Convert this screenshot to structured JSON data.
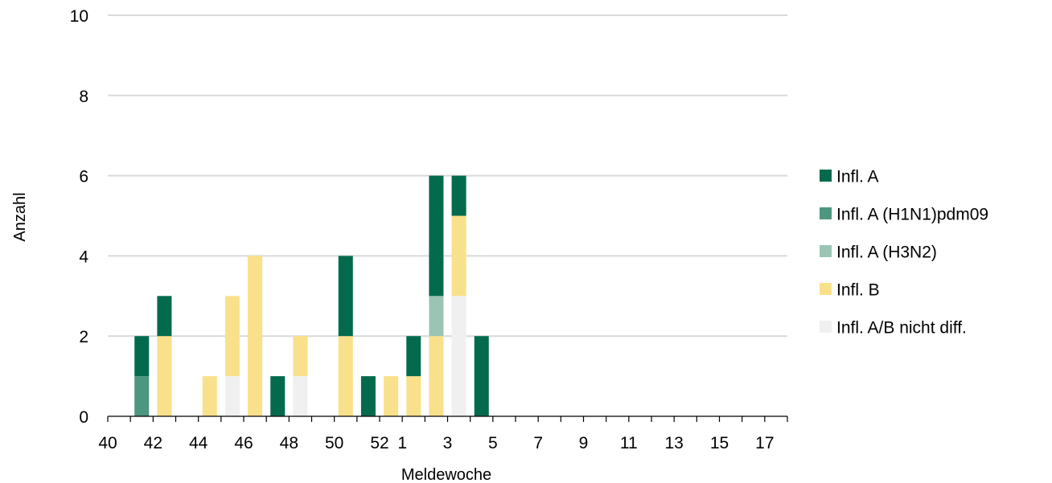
{
  "chart_data": {
    "type": "bar",
    "stacked": true,
    "xlabel": "Meldewoche",
    "ylabel": "Anzahl",
    "ylim": [
      0,
      10
    ],
    "yticks": [
      "0",
      "2",
      "4",
      "6",
      "8",
      "10"
    ],
    "grid": true,
    "legend_position": "right",
    "categories": [
      "40",
      "41",
      "42",
      "43",
      "44",
      "45",
      "46",
      "47",
      "48",
      "49",
      "50",
      "51",
      "52",
      "1",
      "2",
      "3",
      "4",
      "5",
      "6",
      "7",
      "8",
      "9",
      "10",
      "11",
      "12",
      "13",
      "14",
      "15",
      "16",
      "17"
    ],
    "xtick_labels": [
      "40",
      "42",
      "44",
      "46",
      "48",
      "50",
      "52",
      "1",
      "3",
      "5",
      "7",
      "9",
      "11",
      "13",
      "15",
      "17"
    ],
    "series": [
      {
        "name": "Infl. A/B nicht diff.",
        "color": "#f0f0f0",
        "values": [
          0,
          0,
          0,
          0,
          0,
          1,
          0,
          0,
          1,
          0,
          0,
          0,
          0,
          0,
          0,
          3,
          0,
          0,
          0,
          0,
          0,
          0,
          0,
          0,
          0,
          0,
          0,
          0,
          0,
          0
        ]
      },
      {
        "name": "Infl. B",
        "color": "#f9e08b",
        "values": [
          0,
          0,
          2,
          0,
          1,
          2,
          4,
          0,
          1,
          0,
          2,
          0,
          1,
          1,
          2,
          2,
          0,
          0,
          0,
          0,
          0,
          0,
          0,
          0,
          0,
          0,
          0,
          0,
          0,
          0
        ]
      },
      {
        "name": "Infl. A (H3N2)",
        "color": "#9ac5b5",
        "values": [
          0,
          0,
          0,
          0,
          0,
          0,
          0,
          0,
          0,
          0,
          0,
          0,
          0,
          0,
          1,
          0,
          0,
          0,
          0,
          0,
          0,
          0,
          0,
          0,
          0,
          0,
          0,
          0,
          0,
          0
        ]
      },
      {
        "name": "Infl. A (H1N1)pdm09",
        "color": "#4d9680",
        "values": [
          0,
          1,
          0,
          0,
          0,
          0,
          0,
          0,
          0,
          0,
          0,
          0,
          0,
          0,
          0,
          0,
          0,
          0,
          0,
          0,
          0,
          0,
          0,
          0,
          0,
          0,
          0,
          0,
          0,
          0
        ]
      },
      {
        "name": "Infl. A",
        "color": "#046a4e",
        "values": [
          0,
          1,
          1,
          0,
          0,
          0,
          0,
          1,
          0,
          0,
          2,
          1,
          0,
          1,
          3,
          1,
          2,
          0,
          0,
          0,
          0,
          0,
          0,
          0,
          0,
          0,
          0,
          0,
          0,
          0
        ]
      }
    ],
    "legend_order": [
      "Infl. A",
      "Infl. A (H1N1)pdm09",
      "Infl. A (H3N2)",
      "Infl. B",
      "Infl. A/B nicht diff."
    ]
  }
}
